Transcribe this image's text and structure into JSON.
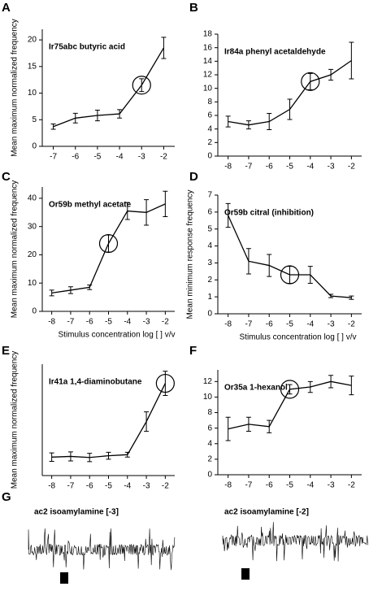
{
  "chart_data": [
    {
      "type": "line",
      "panel": "A",
      "title": "Ir75abc  butyric acid",
      "y_label": "Mean maximum normalized frequency",
      "x": [
        -7,
        -6,
        -5,
        -4,
        -3,
        -2
      ],
      "values": [
        3.7,
        5.3,
        5.8,
        6.1,
        11.5,
        18.5
      ],
      "errors": [
        0.5,
        0.9,
        1.0,
        0.8,
        1.2,
        2.0
      ],
      "highlight_x": -3,
      "xlim": [
        -7.5,
        -1.5
      ],
      "xticks": [
        -7,
        -6,
        -5,
        -4,
        -3,
        -2
      ],
      "ylim": [
        0,
        22
      ],
      "yticks": [
        0,
        5,
        10,
        15,
        20
      ],
      "color": "#000000"
    },
    {
      "type": "line",
      "panel": "B",
      "title": "Ir84a   phenyl acetaldehyde",
      "x": [
        -8,
        -7,
        -6,
        -5,
        -4,
        -3,
        -2
      ],
      "values": [
        5.1,
        4.6,
        5.1,
        6.9,
        11,
        12,
        14.1
      ],
      "errors": [
        0.8,
        0.6,
        1.2,
        1.5,
        1.2,
        0.8,
        2.7
      ],
      "highlight_x": -4,
      "xlim": [
        -8.5,
        -1.5
      ],
      "xticks": [
        -8,
        -7,
        -6,
        -5,
        -4,
        -3,
        -2
      ],
      "ylim": [
        0,
        18
      ],
      "yticks": [
        0,
        2,
        4,
        6,
        8,
        10,
        12,
        14,
        16,
        18
      ],
      "color": "#000000"
    },
    {
      "type": "line",
      "panel": "C",
      "title": "Or59b   methyl acetate",
      "y_label": "Mean maximum normalized frequency",
      "x_label": "Stimulus concentration log [ ] v/v",
      "x": [
        -8,
        -7,
        -6,
        -5,
        -4,
        -3,
        -2
      ],
      "values": [
        6.5,
        7.5,
        8.5,
        24,
        35.5,
        35,
        38
      ],
      "errors": [
        1,
        1.2,
        0.8,
        3,
        3,
        4.5,
        4.5
      ],
      "highlight_x": -5,
      "xlim": [
        -8.5,
        -1.5
      ],
      "xticks": [
        -8,
        -7,
        -6,
        -5,
        -4,
        -3,
        -2
      ],
      "ylim": [
        0,
        44
      ],
      "yticks": [
        0,
        10,
        20,
        30,
        40
      ],
      "color": "#000000"
    },
    {
      "type": "line",
      "panel": "D",
      "title": "Or59b   citral (inhibition)",
      "y_label": "Mean minimum response frequency",
      "x_label": "Stimulus concentration log [ ] v/v",
      "x": [
        -8,
        -7,
        -6,
        -5,
        -4,
        -3,
        -2
      ],
      "values": [
        5.8,
        3.1,
        2.85,
        2.3,
        2.3,
        1.05,
        0.95
      ],
      "errors": [
        0.7,
        0.75,
        0.65,
        0.5,
        0.5,
        0.1,
        0.1
      ],
      "highlight_x": -5,
      "xlim": [
        -8.5,
        -1.5
      ],
      "xticks": [
        -8,
        -7,
        -6,
        -5,
        -4,
        -3,
        -2
      ],
      "ylim": [
        0,
        7
      ],
      "yticks": [
        0,
        1,
        2,
        3,
        4,
        5,
        6,
        7
      ],
      "color": "#000000"
    },
    {
      "type": "line",
      "panel": "E",
      "title": "Ir41a   1,4-diaminobutane",
      "y_label": "Mean maximum normalized frequency",
      "x": [
        -8,
        -7,
        -6,
        -5,
        -4,
        -3,
        -2
      ],
      "values": [
        5.3,
        5.5,
        5.2,
        5.7,
        6,
        15.5,
        26.5
      ],
      "errors": [
        1.2,
        1.3,
        1.2,
        1,
        0.7,
        2.8,
        3.5
      ],
      "highlight_x": -2,
      "xlim": [
        -8.5,
        -1.5
      ],
      "xticks": [
        -8,
        -7,
        -6,
        -5,
        -4,
        -3,
        -2
      ],
      "ylim": [
        0,
        32
      ],
      "color": "#000000"
    },
    {
      "type": "line",
      "panel": "F",
      "title": "Or35a   1-hexanol",
      "x": [
        -8,
        -7,
        -6,
        -5,
        -4,
        -3,
        -2
      ],
      "values": [
        5.9,
        6.5,
        6.2,
        11,
        11.3,
        12,
        11.5
      ],
      "errors": [
        1.5,
        0.9,
        0.8,
        0.6,
        0.7,
        0.8,
        1.2
      ],
      "highlight_x": -5,
      "xlim": [
        -8.5,
        -1.5
      ],
      "xticks": [
        -8,
        -7,
        -6,
        -5,
        -4,
        -3,
        -2
      ],
      "ylim": [
        0,
        13.5
      ],
      "yticks": [
        0,
        2,
        4,
        6,
        8,
        10,
        12
      ],
      "color": "#000000"
    }
  ],
  "traces": {
    "panel": "G",
    "labels": [
      "ac2 isoamylamine [-3]",
      "ac2 isoamylamine [-2]"
    ]
  }
}
